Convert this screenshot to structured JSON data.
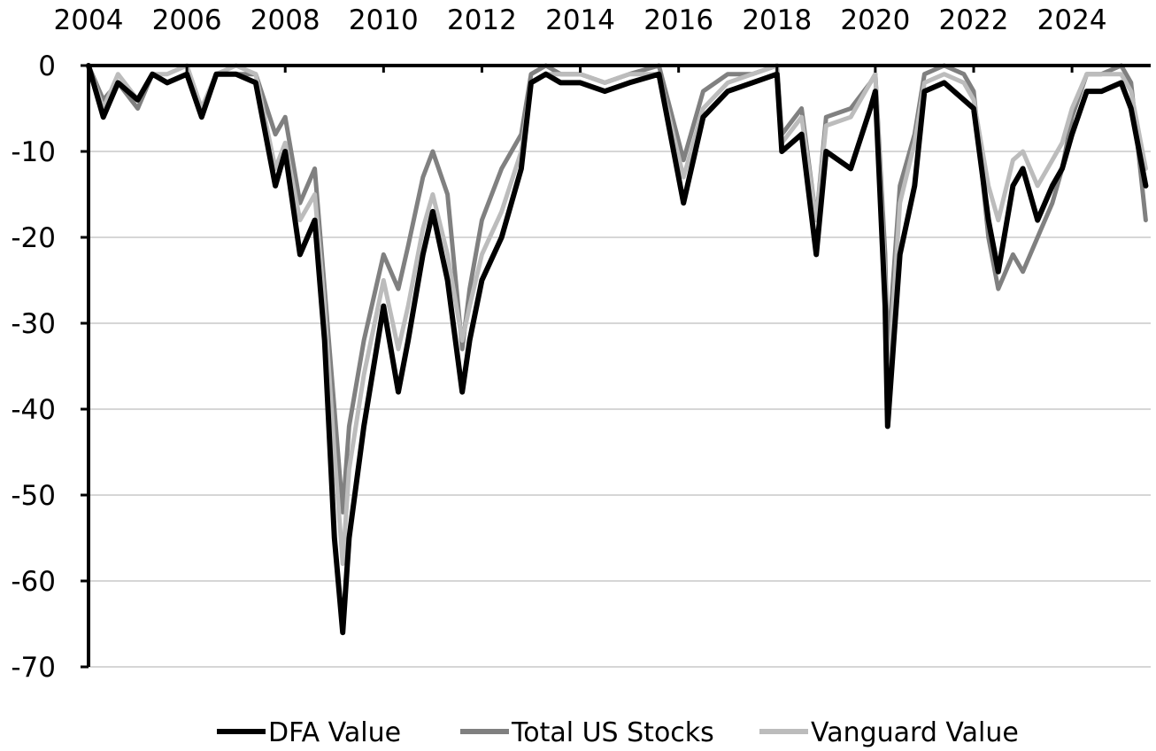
{
  "chart_data": {
    "type": "line",
    "title": "",
    "xlabel": "",
    "ylabel": "",
    "x_axis_position": "top",
    "xlim": [
      2004,
      2025.6
    ],
    "ylim": [
      -70,
      0
    ],
    "x_tick_labels": [
      "2004",
      "2006",
      "2008",
      "2010",
      "2012",
      "2014",
      "2016",
      "2018",
      "2020",
      "2022",
      "2024"
    ],
    "y_tick_labels": [
      "0",
      "-10",
      "-20",
      "-30",
      "-40",
      "-50",
      "-60",
      "-70"
    ],
    "grid": "horizontal",
    "legend_position": "bottom",
    "x": [
      2004.0,
      2004.3,
      2004.6,
      2005.0,
      2005.3,
      2005.6,
      2006.0,
      2006.3,
      2006.6,
      2007.0,
      2007.4,
      2007.8,
      2008.0,
      2008.3,
      2008.6,
      2008.8,
      2009.0,
      2009.17,
      2009.3,
      2009.6,
      2010.0,
      2010.3,
      2010.5,
      2010.8,
      2011.0,
      2011.3,
      2011.6,
      2011.75,
      2012.0,
      2012.4,
      2012.8,
      2013.0,
      2013.3,
      2013.6,
      2014.0,
      2014.5,
      2015.0,
      2015.6,
      2016.1,
      2016.5,
      2017.0,
      2017.5,
      2018.0,
      2018.1,
      2018.5,
      2018.8,
      2019.0,
      2019.5,
      2019.9,
      2020.0,
      2020.2,
      2020.25,
      2020.5,
      2020.8,
      2021.0,
      2021.4,
      2021.8,
      2022.0,
      2022.3,
      2022.5,
      2022.8,
      2023.0,
      2023.3,
      2023.6,
      2023.8,
      2024.0,
      2024.3,
      2024.6,
      2025.0,
      2025.2,
      2025.5
    ],
    "series": [
      {
        "name": "DFA Value",
        "color": "#000000",
        "width": 6,
        "values": [
          0,
          -6,
          -2,
          -4,
          -1,
          -2,
          -1,
          -6,
          -1,
          -1,
          -2,
          -14,
          -10,
          -22,
          -18,
          -32,
          -55,
          -66,
          -55,
          -42,
          -28,
          -38,
          -32,
          -22,
          -17,
          -25,
          -38,
          -32,
          -25,
          -20,
          -12,
          -2,
          -1,
          -2,
          -2,
          -3,
          -2,
          -1,
          -16,
          -6,
          -3,
          -2,
          -1,
          -10,
          -8,
          -22,
          -10,
          -12,
          -5,
          -3,
          -28,
          -42,
          -22,
          -14,
          -3,
          -2,
          -4,
          -5,
          -18,
          -24,
          -14,
          -12,
          -18,
          -14,
          -12,
          -8,
          -3,
          -3,
          -2,
          -5,
          -14
        ]
      },
      {
        "name": "Total US Stocks",
        "color": "#808080",
        "width": 5,
        "values": [
          0,
          -4,
          -2,
          -5,
          -1,
          -2,
          -1,
          -5,
          -1,
          -1,
          -1,
          -8,
          -6,
          -16,
          -12,
          -26,
          -40,
          -52,
          -42,
          -32,
          -22,
          -26,
          -21,
          -13,
          -10,
          -15,
          -33,
          -26,
          -18,
          -12,
          -8,
          -1,
          0,
          -1,
          -1,
          -2,
          -1,
          0,
          -11,
          -3,
          -1,
          -1,
          0,
          -8,
          -5,
          -18,
          -6,
          -5,
          -2,
          -1,
          -22,
          -34,
          -14,
          -8,
          -1,
          0,
          -1,
          -3,
          -20,
          -26,
          -22,
          -24,
          -20,
          -16,
          -12,
          -6,
          -1,
          -1,
          0,
          -2,
          -18
        ]
      },
      {
        "name": "Vanguard Value",
        "color": "#bcbcbc",
        "width": 5,
        "values": [
          0,
          -5,
          -1,
          -4,
          -1,
          -1,
          0,
          -5,
          -1,
          0,
          -1,
          -12,
          -9,
          -18,
          -15,
          -28,
          -45,
          -58,
          -47,
          -36,
          -25,
          -33,
          -28,
          -19,
          -15,
          -22,
          -32,
          -28,
          -22,
          -17,
          -10,
          -2,
          -1,
          -1,
          -1,
          -2,
          -1,
          -1,
          -13,
          -5,
          -2,
          -1,
          0,
          -9,
          -6,
          -18,
          -7,
          -6,
          -2,
          -1,
          -25,
          -38,
          -16,
          -9,
          -2,
          -1,
          -2,
          -4,
          -14,
          -18,
          -11,
          -10,
          -14,
          -11,
          -9,
          -5,
          -1,
          -1,
          -1,
          -3,
          -12
        ]
      }
    ]
  }
}
